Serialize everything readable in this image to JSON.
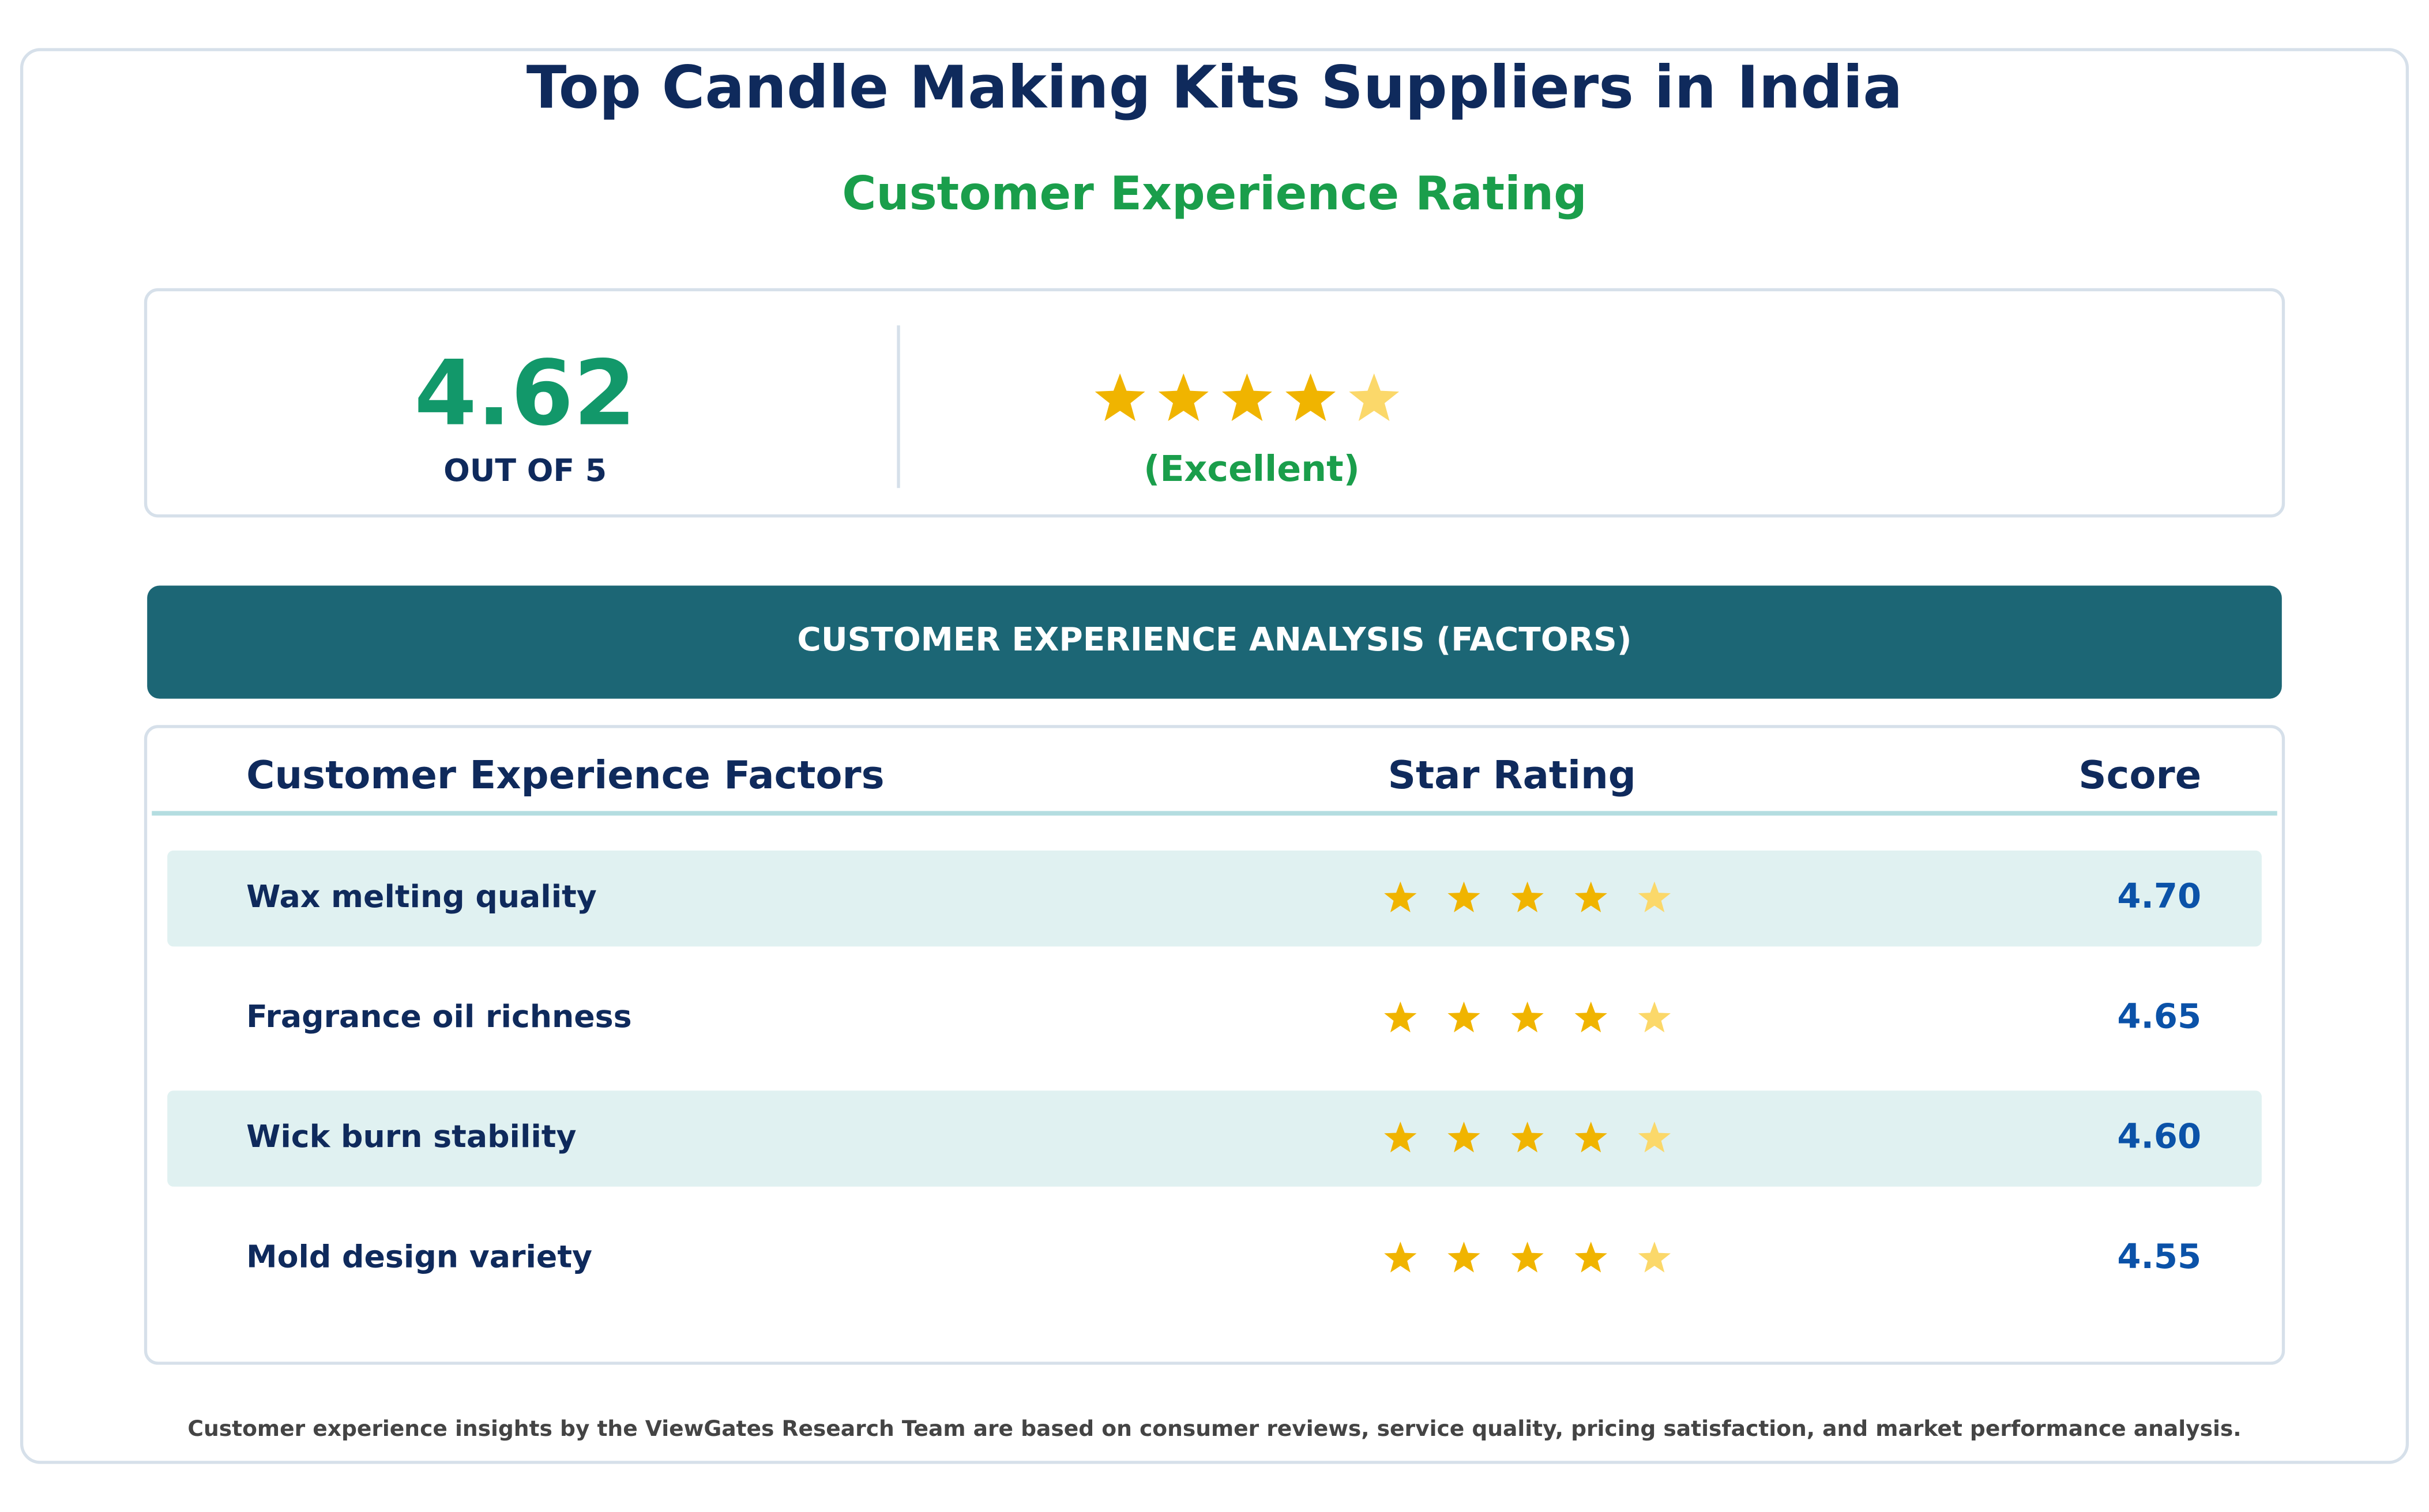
{
  "header": {
    "title": "Top Candle Making Kits Suppliers in India",
    "subtitle": "Customer Experience Rating"
  },
  "summary": {
    "score": "4.62",
    "scale": "OUT OF 5",
    "verdict": "(Excellent)"
  },
  "banner": "CUSTOMER EXPERIENCE ANALYSIS (FACTORS)",
  "table": {
    "columns": [
      "Customer Experience Factors",
      "Star Rating",
      "Score"
    ],
    "rows": [
      [
        "Wax melting quality",
        "4.70"
      ],
      [
        "Fragrance oil richness",
        "4.65"
      ],
      [
        "Wick burn stability",
        "4.60"
      ],
      [
        "Mold design variety",
        "4.55"
      ]
    ]
  },
  "footer": "Customer experience insights by the ViewGates Research Team are based on consumer reviews, service quality, pricing satisfaction, and market performance analysis."
}
